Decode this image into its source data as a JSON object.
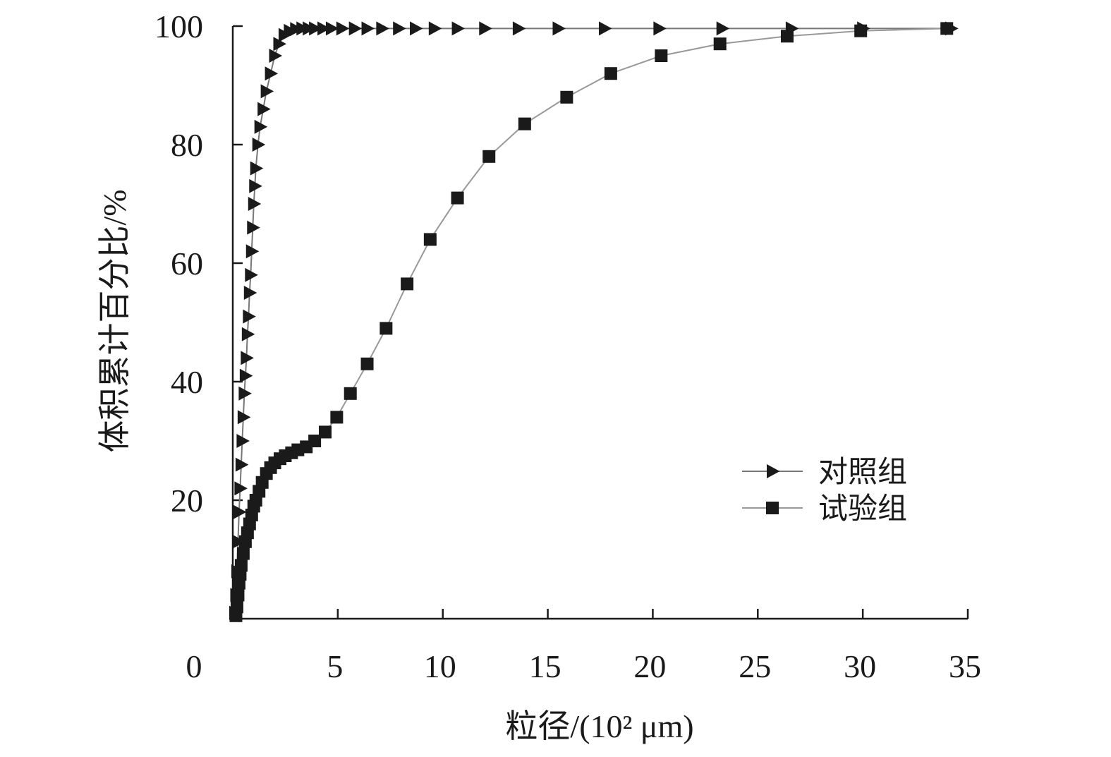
{
  "chart_data": {
    "type": "line",
    "title": "",
    "xlabel": "粒径/(10² μm)",
    "ylabel": "体积累计百分比/%",
    "xlim": [
      0,
      35
    ],
    "ylim": [
      0,
      100
    ],
    "x_ticks": [
      0,
      5,
      10,
      15,
      20,
      25,
      30,
      35
    ],
    "x_tick_labels": [
      "0",
      "5",
      "10",
      "15",
      "20",
      "25",
      "30",
      "35"
    ],
    "y_ticks": [
      20,
      40,
      60,
      80,
      100
    ],
    "y_tick_labels": [
      "20",
      "40",
      "60",
      "80",
      "100"
    ],
    "grid": false,
    "legend_position": "lower-right",
    "series": [
      {
        "name": "对照组",
        "marker": "triangle-right",
        "color": "#1a1a1a",
        "line_color": "#777777",
        "x": [
          0.1,
          0.15,
          0.2,
          0.25,
          0.3,
          0.35,
          0.4,
          0.45,
          0.5,
          0.55,
          0.6,
          0.65,
          0.7,
          0.75,
          0.8,
          0.85,
          0.9,
          0.95,
          1.0,
          1.05,
          1.1,
          1.2,
          1.3,
          1.45,
          1.6,
          1.8,
          2.0,
          2.2,
          2.45,
          2.7,
          3.0,
          3.3,
          3.6,
          3.9,
          4.3,
          4.7,
          5.2,
          5.8,
          6.4,
          7.1,
          7.9,
          8.7,
          9.6,
          10.7,
          12.0,
          13.6,
          15.5,
          17.7,
          20.3,
          23.3,
          26.6,
          30.0,
          34.2
        ],
        "y": [
          1,
          4,
          8,
          13,
          18,
          22,
          26,
          30,
          34,
          38,
          41,
          44,
          48,
          51,
          55,
          58,
          62,
          66,
          70,
          73,
          76,
          80,
          83,
          86,
          89,
          92,
          95,
          97,
          98.5,
          99.2,
          99.5,
          99.6,
          99.6,
          99.6,
          99.6,
          99.6,
          99.6,
          99.6,
          99.6,
          99.6,
          99.6,
          99.6,
          99.6,
          99.6,
          99.6,
          99.6,
          99.6,
          99.6,
          99.6,
          99.6,
          99.6,
          99.6,
          99.6
        ]
      },
      {
        "name": "试验组",
        "marker": "square",
        "color": "#1a1a1a",
        "line_color": "#999999",
        "x": [
          0.15,
          0.2,
          0.25,
          0.3,
          0.35,
          0.4,
          0.5,
          0.6,
          0.7,
          0.8,
          0.9,
          1.0,
          1.1,
          1.25,
          1.4,
          1.6,
          1.8,
          2.0,
          2.25,
          2.5,
          2.8,
          3.1,
          3.5,
          3.9,
          4.4,
          4.95,
          5.6,
          6.4,
          7.3,
          8.3,
          9.4,
          10.7,
          12.2,
          13.9,
          15.9,
          18.0,
          20.4,
          23.2,
          26.4,
          29.9,
          34.0
        ],
        "y": [
          0.5,
          2,
          4,
          6,
          7.5,
          9,
          11,
          13,
          14.5,
          16,
          17.5,
          19,
          20,
          21.5,
          23,
          24.5,
          25.5,
          26.3,
          27,
          27.5,
          28,
          28.5,
          29,
          30,
          31.5,
          34,
          38,
          43,
          49,
          56.5,
          64,
          71,
          78,
          83.5,
          88,
          92,
          95,
          97,
          98.3,
          99.2,
          99.6
        ]
      }
    ]
  }
}
